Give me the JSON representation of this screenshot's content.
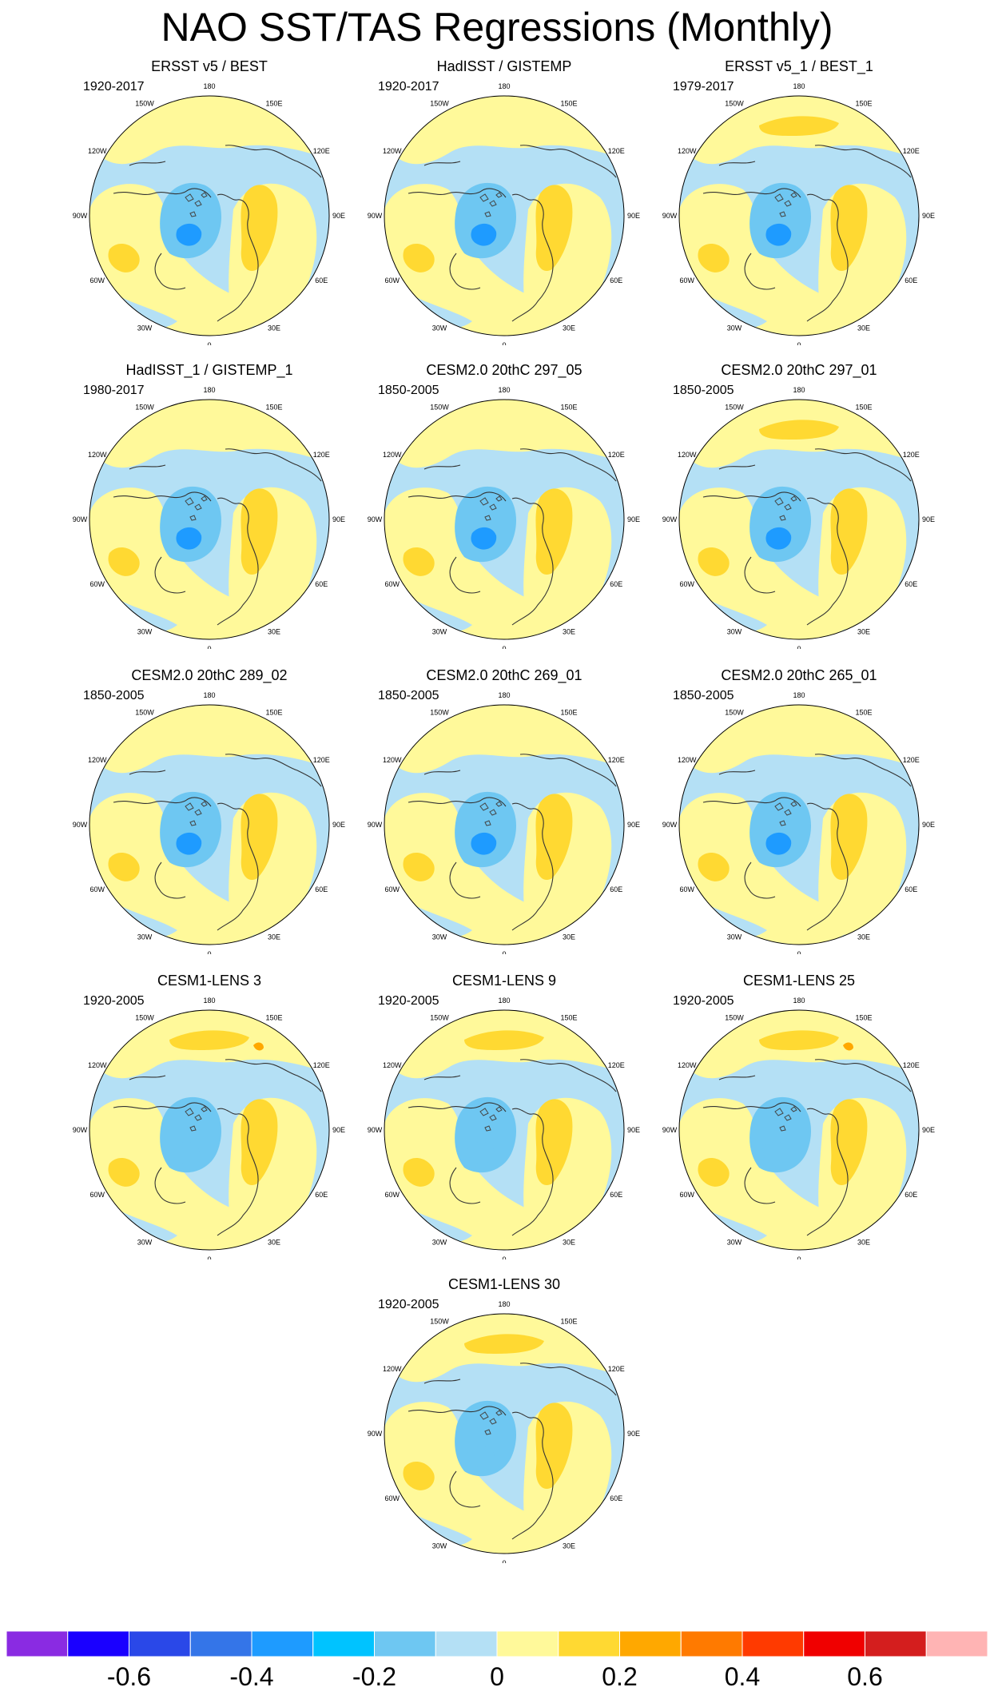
{
  "figure": {
    "title": "NAO SST/TAS Regressions (Monthly)"
  },
  "map_labels": {
    "top": "180",
    "top_right": "150E",
    "upper_right": "120E",
    "right": "90E",
    "lower_right": "60E",
    "bottom_right": "30E",
    "bottom": "0",
    "bottom_left": "30W",
    "lower_left": "60W",
    "left": "90W",
    "upper_left": "120W",
    "top_left": "150W"
  },
  "panels": [
    {
      "title": "ERSST v5 / BEST",
      "period": "1920-2017",
      "variant": "obs"
    },
    {
      "title": "HadISST / GISTEMP",
      "period": "1920-2017",
      "variant": "obs"
    },
    {
      "title": "ERSST v5_1 / BEST_1",
      "period": "1979-2017",
      "variant": "obs"
    },
    {
      "title": "HadISST_1 / GISTEMP_1",
      "period": "1980-2017",
      "variant": "obs"
    },
    {
      "title": "CESM2.0 20thC 297_05",
      "period": "1850-2005",
      "variant": "model"
    },
    {
      "title": "CESM2.0 20thC 297_01",
      "period": "1850-2005",
      "variant": "model"
    },
    {
      "title": "CESM2.0 20thC 289_02",
      "period": "1850-2005",
      "variant": "model"
    },
    {
      "title": "CESM2.0 20thC 269_01",
      "period": "1850-2005",
      "variant": "model"
    },
    {
      "title": "CESM2.0 20thC 265_01",
      "period": "1850-2005",
      "variant": "model"
    },
    {
      "title": "CESM1-LENS 3",
      "period": "1920-2005",
      "variant": "lens"
    },
    {
      "title": "CESM1-LENS 9",
      "period": "1920-2005",
      "variant": "lens"
    },
    {
      "title": "CESM1-LENS 25",
      "period": "1920-2005",
      "variant": "lens"
    },
    {
      "title": "CESM1-LENS 30",
      "period": "1920-2005",
      "variant": "lens"
    }
  ],
  "colorbar": {
    "colors": [
      "#8a2be2",
      "#1a00ff",
      "#2a48e8",
      "#3475e8",
      "#1e9bff",
      "#00c3ff",
      "#6ec7f2",
      "#b4e0f5",
      "#fff99a",
      "#ffd932",
      "#ffa800",
      "#ff7a00",
      "#ff3a00",
      "#f00000",
      "#d41e1e",
      "#ffb4b4"
    ],
    "tick_labels": [
      "-0.6",
      "-0.4",
      "-0.2",
      "0",
      "0.2",
      "0.4",
      "0.6"
    ]
  },
  "map_colors": {
    "light_blue": "#b4e0f5",
    "blue": "#6ec7f2",
    "deep_blue": "#1e9bff",
    "light_yellow": "#fff99a",
    "gold": "#ffd932",
    "orange": "#ffa800"
  }
}
